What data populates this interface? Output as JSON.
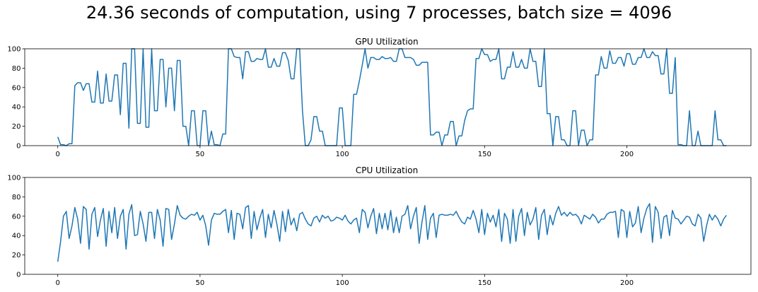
{
  "figure": {
    "suptitle": "24.36 seconds of computation, using 7 processes, batch size = 4096"
  },
  "chart_data": [
    {
      "type": "line",
      "title": "GPU Utilization",
      "xlabel": "",
      "ylabel": "",
      "xlim": [
        -11.6,
        243.6
      ],
      "ylim": [
        0,
        100
      ],
      "xticks": [
        0,
        50,
        100,
        150,
        200
      ],
      "yticks": [
        0,
        20,
        40,
        60,
        80,
        100
      ],
      "grid": false,
      "color": "#1f77b4",
      "series": [
        {
          "values": [
            9,
            1,
            1,
            0,
            2,
            2,
            62,
            65,
            65,
            57,
            64,
            64,
            45,
            45,
            77,
            44,
            44,
            74,
            46,
            46,
            73,
            73,
            32,
            85,
            85,
            18,
            100,
            100,
            23,
            23,
            100,
            19,
            19,
            100,
            36,
            36,
            89,
            89,
            40,
            80,
            80,
            36,
            88,
            88,
            20,
            20,
            0,
            36,
            36,
            0,
            0,
            36,
            36,
            0,
            15,
            1,
            1,
            0,
            12,
            12,
            100,
            100,
            92,
            91,
            91,
            69,
            97,
            97,
            87,
            87,
            90,
            89,
            89,
            100,
            81,
            81,
            90,
            82,
            82,
            96,
            96,
            88,
            69,
            69,
            100,
            100,
            36,
            0,
            0,
            6,
            30,
            30,
            15,
            15,
            0,
            0,
            0,
            0,
            0,
            39,
            39,
            0,
            0,
            0,
            53,
            53,
            67,
            83,
            100,
            80,
            91,
            91,
            89,
            89,
            92,
            90,
            90,
            91,
            87,
            87,
            100,
            100,
            91,
            91,
            91,
            89,
            83,
            83,
            86,
            86,
            86,
            11,
            11,
            14,
            14,
            0,
            11,
            11,
            25,
            25,
            0,
            10,
            10,
            26,
            36,
            38,
            38,
            90,
            90,
            100,
            94,
            94,
            87,
            89,
            89,
            100,
            69,
            69,
            81,
            81,
            97,
            81,
            81,
            89,
            80,
            80,
            100,
            87,
            87,
            61,
            61,
            100,
            33,
            33,
            0,
            30,
            30,
            6,
            6,
            0,
            0,
            36,
            36,
            0,
            16,
            16,
            0,
            6,
            6,
            73,
            73,
            92,
            80,
            80,
            98,
            85,
            85,
            91,
            91,
            82,
            95,
            95,
            84,
            84,
            91,
            91,
            100,
            91,
            91,
            97,
            93,
            93,
            74,
            74,
            100,
            54,
            54,
            91,
            1,
            1,
            0,
            0,
            36,
            0,
            0,
            15,
            0,
            0,
            0,
            0,
            0,
            36,
            6,
            6,
            0,
            0
          ]
        }
      ]
    },
    {
      "type": "line",
      "title": "CPU Utilization",
      "xlabel": "",
      "ylabel": "",
      "xlim": [
        -11.6,
        243.6
      ],
      "ylim": [
        0,
        100
      ],
      "xticks": [
        0,
        50,
        100,
        150,
        200
      ],
      "yticks": [
        0,
        20,
        40,
        60,
        80,
        100
      ],
      "grid": false,
      "color": "#1f77b4",
      "series": [
        {
          "values": [
            13,
            34,
            60,
            65,
            37,
            50,
            69,
            57,
            32,
            70,
            67,
            26,
            62,
            69,
            39,
            56,
            68,
            29,
            65,
            43,
            69,
            37,
            60,
            67,
            26,
            62,
            72,
            40,
            41,
            65,
            52,
            34,
            64,
            64,
            37,
            67,
            56,
            29,
            68,
            67,
            36,
            52,
            71,
            61,
            58,
            57,
            60,
            62,
            61,
            64,
            56,
            61,
            50,
            30,
            56,
            63,
            62,
            62,
            65,
            67,
            43,
            66,
            36,
            63,
            62,
            47,
            69,
            71,
            37,
            65,
            46,
            58,
            67,
            38,
            62,
            48,
            66,
            52,
            34,
            65,
            44,
            67,
            51,
            58,
            45,
            62,
            64,
            57,
            52,
            50,
            58,
            60,
            54,
            61,
            58,
            60,
            55,
            56,
            59,
            58,
            56,
            61,
            55,
            52,
            56,
            58,
            43,
            67,
            64,
            48,
            60,
            68,
            42,
            63,
            47,
            63,
            46,
            66,
            43,
            59,
            43,
            60,
            62,
            71,
            47,
            60,
            69,
            32,
            54,
            71,
            36,
            58,
            63,
            38,
            61,
            62,
            61,
            61,
            62,
            61,
            65,
            59,
            54,
            52,
            59,
            57,
            66,
            57,
            43,
            67,
            41,
            63,
            54,
            61,
            49,
            67,
            34,
            63,
            57,
            32,
            67,
            34,
            60,
            68,
            40,
            64,
            51,
            57,
            69,
            36,
            61,
            67,
            41,
            61,
            51,
            63,
            70,
            61,
            64,
            60,
            64,
            61,
            62,
            59,
            52,
            61,
            59,
            57,
            62,
            59,
            53,
            57,
            57,
            62,
            64,
            64,
            65,
            38,
            67,
            65,
            38,
            65,
            49,
            53,
            70,
            43,
            58,
            68,
            73,
            33,
            70,
            64,
            37,
            59,
            61,
            40,
            66,
            58,
            57,
            52,
            56,
            60,
            59,
            52,
            50,
            62,
            58,
            34,
            50,
            62,
            56,
            61,
            57,
            50,
            57,
            61
          ]
        }
      ]
    }
  ]
}
